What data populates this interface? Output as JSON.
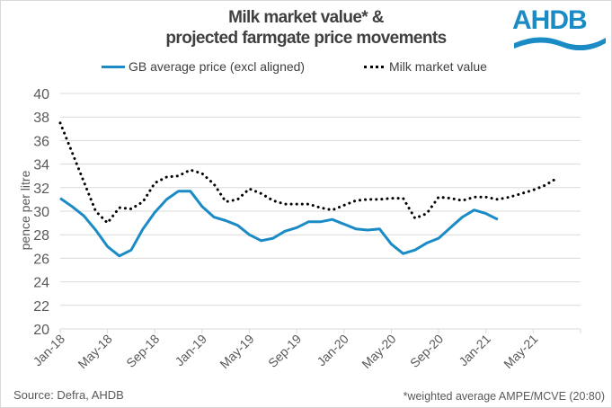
{
  "chart_data": {
    "type": "line",
    "title": "Milk market value* & projected farmgate price movements",
    "title_lines": [
      "Milk market value* &",
      "projected farmgate price movements"
    ],
    "xlabel": "",
    "ylabel": "pence per litre",
    "ylim": [
      20,
      40
    ],
    "yticks": [
      20,
      22,
      24,
      26,
      28,
      30,
      32,
      34,
      36,
      38,
      40
    ],
    "xticks": [
      "Jan-18",
      "May-18",
      "Sep-18",
      "Jan-19",
      "May-19",
      "Sep-19",
      "Jan-20",
      "May-20",
      "Sep-20",
      "Jan-21",
      "May-21"
    ],
    "grid": true,
    "legend_position": "top",
    "x": [
      "Jan-18",
      "Feb-18",
      "Mar-18",
      "Apr-18",
      "May-18",
      "Jun-18",
      "Jul-18",
      "Aug-18",
      "Sep-18",
      "Oct-18",
      "Nov-18",
      "Dec-18",
      "Jan-19",
      "Feb-19",
      "Mar-19",
      "Apr-19",
      "May-19",
      "Jun-19",
      "Jul-19",
      "Aug-19",
      "Sep-19",
      "Oct-19",
      "Nov-19",
      "Dec-19",
      "Jan-20",
      "Feb-20",
      "Mar-20",
      "Apr-20",
      "May-20",
      "Jun-20",
      "Jul-20",
      "Aug-20",
      "Sep-20",
      "Oct-20",
      "Nov-20",
      "Dec-20",
      "Jan-21",
      "Feb-21",
      "Mar-21",
      "Apr-21",
      "May-21",
      "Jun-21",
      "Jul-21"
    ],
    "series": [
      {
        "name": "GB average price (excl aligned)",
        "style": "solid",
        "color": "#1b8bc6",
        "values": [
          31.1,
          30.4,
          29.6,
          28.4,
          27.0,
          26.2,
          26.7,
          28.5,
          29.9,
          31.0,
          31.7,
          31.7,
          30.4,
          29.5,
          29.2,
          28.8,
          28.0,
          27.5,
          27.7,
          28.3,
          28.6,
          29.1,
          29.1,
          29.3,
          28.9,
          28.5,
          28.4,
          28.5,
          27.2,
          26.4,
          26.7,
          27.3,
          27.7,
          28.6,
          29.5,
          30.1,
          29.8,
          29.3,
          null,
          null,
          null,
          null,
          null
        ]
      },
      {
        "name": "Milk market value",
        "style": "dotted",
        "color": "#000000",
        "values": [
          37.5,
          35.0,
          32.5,
          30.0,
          29.0,
          30.3,
          30.2,
          30.8,
          32.4,
          32.9,
          33.0,
          33.5,
          33.2,
          32.3,
          30.8,
          31.0,
          31.9,
          31.5,
          30.9,
          30.6,
          30.6,
          30.6,
          30.3,
          30.1,
          30.5,
          30.9,
          31.0,
          31.0,
          31.1,
          31.1,
          29.4,
          29.8,
          31.2,
          31.1,
          30.9,
          31.2,
          31.2,
          31.0,
          31.2,
          31.5,
          31.8,
          32.2,
          32.8
        ]
      }
    ]
  },
  "header": {
    "logo_text": "AHDB",
    "brand_color": "#1b8bc6"
  },
  "footer": {
    "source": "Source: Defra, AHDB",
    "note": "*weighted average AMPE/MCVE  (20:80)"
  }
}
